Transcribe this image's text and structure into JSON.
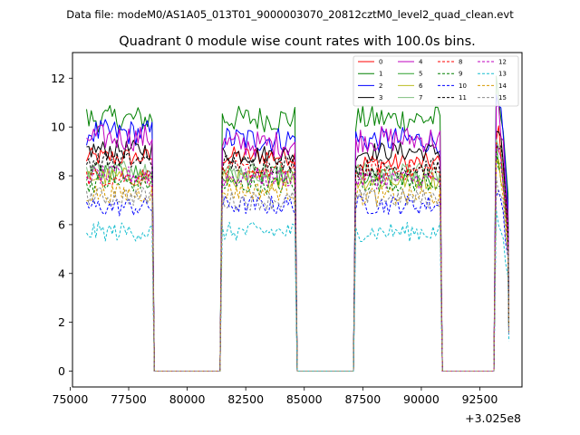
{
  "header": {
    "data_file": "Data file: modeM0/AS1A05_013T01_9000003070_20812cztM0_level2_quad_clean.evt"
  },
  "chart_data": {
    "type": "line",
    "title": "Quadrant 0 module wise count rates with 100.0s bins.",
    "xlabel": "",
    "ylabel": "",
    "x_offset_label": "+3.025e8",
    "xlim": [
      75100,
      94300
    ],
    "ylim": [
      -0.65,
      13.05
    ],
    "x_ticks": [
      {
        "value": 75000,
        "label": "75000"
      },
      {
        "value": 77500,
        "label": "77500"
      },
      {
        "value": 80000,
        "label": "80000"
      },
      {
        "value": 82500,
        "label": "82500"
      },
      {
        "value": 85000,
        "label": "85000"
      },
      {
        "value": 87500,
        "label": "87500"
      },
      {
        "value": 90000,
        "label": "90000"
      },
      {
        "value": 92500,
        "label": "92500"
      }
    ],
    "y_ticks": [
      {
        "value": 0,
        "label": "0"
      },
      {
        "value": 2,
        "label": "2"
      },
      {
        "value": 4,
        "label": "4"
      },
      {
        "value": 6,
        "label": "6"
      },
      {
        "value": 8,
        "label": "8"
      },
      {
        "value": 10,
        "label": "10"
      },
      {
        "value": 12,
        "label": "12"
      }
    ],
    "grid": false,
    "legend_position": "top-right",
    "segments": [
      {
        "start": 75700,
        "end": 78500,
        "zero_until": 81400
      },
      {
        "start": 81500,
        "end": 84600,
        "zero_until": 87100
      },
      {
        "start": 87200,
        "end": 90800,
        "zero_until": 93100
      },
      {
        "start": 93200,
        "end": 93700,
        "zero_until": null
      }
    ],
    "series": [
      {
        "name": "0",
        "color": "#ff0000",
        "dash": false,
        "level": 8.7
      },
      {
        "name": "1",
        "color": "#008000",
        "dash": false,
        "level": 10.4
      },
      {
        "name": "2",
        "color": "#0000ff",
        "dash": false,
        "level": 9.6
      },
      {
        "name": "3",
        "color": "#000000",
        "dash": false,
        "level": 8.9
      },
      {
        "name": "4",
        "color": "#bf00bf",
        "dash": false,
        "level": 9.4
      },
      {
        "name": "5",
        "color": "#2ca02c",
        "dash": false,
        "level": 8.0
      },
      {
        "name": "6",
        "color": "#bcbd22",
        "dash": false,
        "level": 7.8
      },
      {
        "name": "7",
        "color": "#7fbf7f",
        "dash": false,
        "level": 8.3
      },
      {
        "name": "8",
        "color": "#ff0000",
        "dash": true,
        "level": 8.1
      },
      {
        "name": "9",
        "color": "#008000",
        "dash": true,
        "level": 7.6
      },
      {
        "name": "10",
        "color": "#0000ff",
        "dash": true,
        "level": 6.8
      },
      {
        "name": "11",
        "color": "#000000",
        "dash": true,
        "level": 8.5
      },
      {
        "name": "12",
        "color": "#bf00bf",
        "dash": true,
        "level": 7.9
      },
      {
        "name": "13",
        "color": "#17becf",
        "dash": true,
        "level": 5.6
      },
      {
        "name": "14",
        "color": "#d69a00",
        "dash": true,
        "level": 7.3
      },
      {
        "name": "15",
        "color": "#8c8c8c",
        "dash": true,
        "level": 7.0
      }
    ]
  }
}
